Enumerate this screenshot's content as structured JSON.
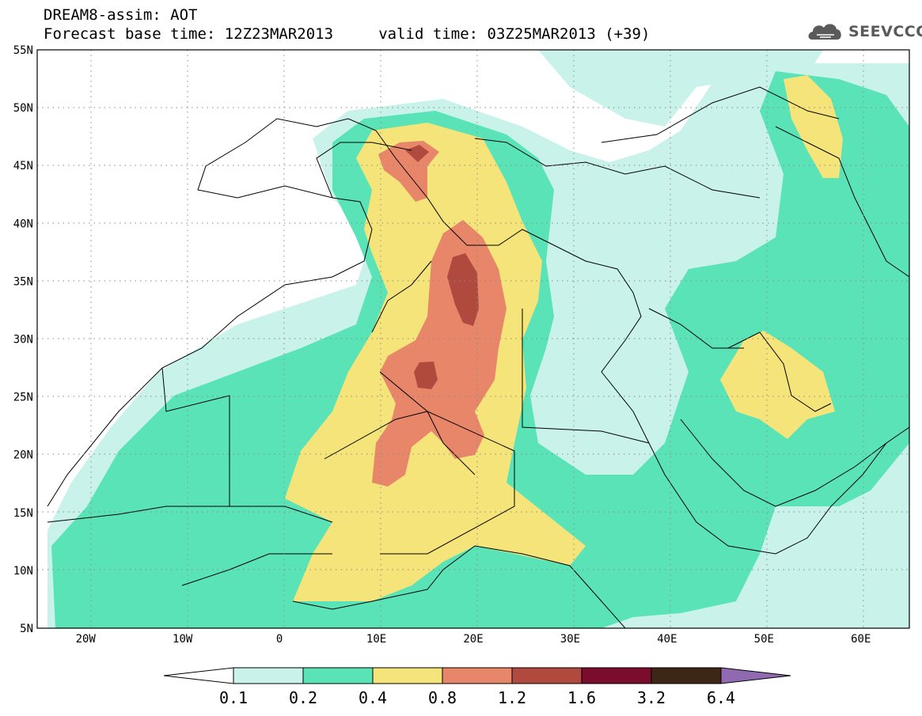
{
  "header": {
    "title_line1": "DREAM8-assim: AOT",
    "title_line2": "Forecast base time: 12Z23MAR2013     valid time: 03Z25MAR2013 (+39)",
    "logo_text": "SEEVCCC",
    "logo_icon": "cloud-icon"
  },
  "map": {
    "projection": "lat-lon",
    "lon_range": [
      -25,
      65
    ],
    "lat_range": [
      5,
      55
    ],
    "lon_ticks": [
      "20W",
      "10W",
      "0",
      "10E",
      "20E",
      "30E",
      "40E",
      "50E",
      "60E"
    ],
    "lat_ticks": [
      "55N",
      "50N",
      "45N",
      "40N",
      "35N",
      "30N",
      "25N",
      "20N",
      "15N",
      "10N",
      "5N"
    ],
    "gridlines": "dotted",
    "variable": "AOT"
  },
  "colorbar": {
    "labels": [
      "0.1",
      "0.2",
      "0.4",
      "0.8",
      "1.2",
      "1.6",
      "3.2",
      "6.4"
    ],
    "colors": [
      "#c8f2ea",
      "#5be3b8",
      "#f5e47a",
      "#e8866a",
      "#b04a3e",
      "#7a0d2d",
      "#3e2616",
      "#8f6ab0"
    ],
    "low_color": "#ffffff"
  }
}
